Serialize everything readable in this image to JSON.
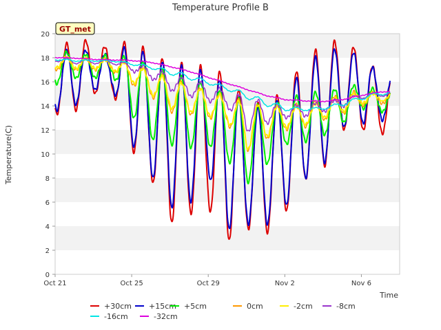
{
  "chart_data": {
    "type": "line",
    "title": "Temperature Profile B",
    "xlabel": "Time",
    "ylabel": "Temperature(C)",
    "badge": "GT_met",
    "xlim": [
      0,
      18
    ],
    "ylim": [
      0,
      20
    ],
    "y_ticks": [
      0,
      2,
      4,
      6,
      8,
      10,
      12,
      14,
      16,
      18,
      20
    ],
    "x_ticks": [
      {
        "day": 0,
        "label": "Oct 21"
      },
      {
        "day": 4,
        "label": "Oct 25"
      },
      {
        "day": 8,
        "label": "Oct 29"
      },
      {
        "day": 12,
        "label": "Nov 2"
      },
      {
        "day": 16,
        "label": "Nov 6"
      }
    ],
    "grid": "horizontal bands",
    "legend_position": "bottom",
    "series": [
      {
        "name": "+30cm",
        "color": "#dd0000",
        "width": 2.0
      },
      {
        "name": "+15cm",
        "color": "#0000cc",
        "width": 2.0
      },
      {
        "name": "+5cm",
        "color": "#00ee00",
        "width": 2.0
      },
      {
        "name": "0cm",
        "color": "#ff9900",
        "width": 1.5
      },
      {
        "name": "-2cm",
        "color": "#ffee00",
        "width": 2.0
      },
      {
        "name": "-8cm",
        "color": "#9933cc",
        "width": 1.5
      },
      {
        "name": "-16cm",
        "color": "#00e5e5",
        "width": 1.5
      },
      {
        "name": "-32cm",
        "color": "#dd00dd",
        "width": 1.5
      }
    ],
    "daily": {
      "days": [
        0,
        1,
        2,
        3,
        4,
        5,
        6,
        7,
        8,
        9,
        10,
        11,
        12,
        13,
        14,
        15,
        16,
        17
      ],
      "+30cm": {
        "max": [
          18.7,
          19.5,
          19.4,
          18.6,
          19.7,
          18.3,
          17.8,
          17.5,
          17.2,
          16.7,
          14.5,
          14.0,
          15.5,
          17.8,
          19.2,
          19.5,
          18.5,
          16.5
        ],
        "min": [
          13.3,
          13.5,
          15.0,
          15.2,
          10.4,
          8.0,
          4.2,
          5.0,
          5.5,
          2.7,
          3.8,
          3.3,
          5.0,
          7.8,
          8.7,
          12.0,
          12.0,
          11.7
        ]
      },
      "+15cm": {
        "max": [
          18.3,
          18.8,
          18.5,
          18.2,
          19.2,
          18.0,
          17.5,
          17.2,
          16.8,
          15.8,
          14.0,
          13.8,
          15.0,
          17.2,
          18.6,
          18.8,
          18.2,
          16.5
        ],
        "min": [
          13.6,
          14.0,
          15.3,
          15.5,
          10.9,
          8.3,
          5.5,
          5.8,
          8.3,
          3.7,
          4.2,
          4.0,
          5.5,
          7.9,
          9.0,
          12.2,
          12.5,
          12.8
        ]
      },
      "+5cm": {
        "max": [
          18.6,
          18.4,
          18.2,
          18.2,
          18.0,
          17.5,
          16.8,
          16.2,
          15.8,
          15.0,
          14.3,
          14.0,
          14.5,
          15.0,
          15.2,
          15.5,
          15.8,
          15.2
        ],
        "min": [
          15.8,
          16.3,
          16.3,
          16.6,
          13.2,
          11.2,
          10.8,
          10.5,
          10.7,
          9.5,
          7.5,
          9.0,
          10.8,
          11.0,
          11.5,
          12.5,
          13.8,
          13.5
        ]
      },
      "0cm": {
        "max": [
          18.2,
          18.0,
          17.9,
          17.9,
          17.5,
          17.0,
          16.3,
          15.8,
          15.3,
          14.8,
          14.3,
          14.0,
          14.0,
          14.2,
          14.5,
          15.0,
          15.3,
          15.0
        ],
        "min": [
          17.0,
          17.0,
          17.0,
          16.9,
          15.8,
          14.8,
          13.5,
          13.3,
          13.0,
          12.5,
          10.2,
          11.2,
          12.0,
          12.2,
          12.8,
          13.3,
          14.0,
          14.2
        ]
      },
      "-2cm": {
        "max": [
          18.1,
          18.0,
          17.9,
          17.8,
          17.5,
          16.8,
          16.2,
          15.7,
          15.2,
          14.7,
          14.2,
          14.0,
          13.9,
          14.0,
          14.3,
          14.8,
          15.1,
          15.0
        ],
        "min": [
          17.2,
          17.1,
          17.1,
          17.0,
          16.0,
          15.0,
          13.8,
          13.5,
          13.2,
          12.7,
          10.3,
          11.4,
          12.2,
          12.4,
          13.0,
          13.5,
          14.2,
          14.4
        ]
      },
      "-8cm": {
        "max": [
          18.0,
          17.9,
          17.8,
          17.8,
          17.5,
          17.2,
          16.6,
          16.2,
          15.8,
          15.2,
          14.8,
          14.3,
          14.0,
          14.1,
          14.3,
          14.6,
          15.0,
          15.1
        ],
        "min": [
          17.7,
          17.5,
          17.5,
          17.5,
          16.9,
          16.3,
          15.3,
          14.8,
          14.4,
          13.9,
          11.8,
          12.5,
          13.0,
          13.1,
          13.5,
          13.9,
          14.6,
          14.8
        ]
      },
      "-16cm": {
        "max": [
          17.9,
          17.85,
          17.8,
          17.8,
          17.6,
          17.35,
          17.0,
          16.6,
          16.1,
          15.6,
          15.1,
          14.5,
          14.0,
          13.8,
          13.9,
          14.3,
          14.8,
          15.2
        ],
        "min": [
          17.8,
          17.7,
          17.7,
          17.7,
          17.4,
          17.1,
          16.6,
          16.2,
          15.8,
          15.3,
          14.6,
          14.0,
          13.6,
          13.6,
          13.7,
          14.0,
          14.5,
          14.9
        ]
      },
      "-32cm": {
        "max": [
          18.05,
          18.0,
          17.9,
          17.85,
          17.8,
          17.65,
          17.3,
          16.9,
          16.4,
          15.9,
          15.4,
          14.9,
          14.55,
          14.45,
          14.4,
          14.55,
          14.9,
          15.2
        ],
        "min": [
          18.0,
          17.95,
          17.85,
          17.8,
          17.75,
          17.6,
          17.25,
          16.85,
          16.35,
          15.85,
          15.35,
          14.85,
          14.5,
          14.4,
          14.35,
          14.5,
          14.85,
          15.15
        ]
      }
    }
  }
}
